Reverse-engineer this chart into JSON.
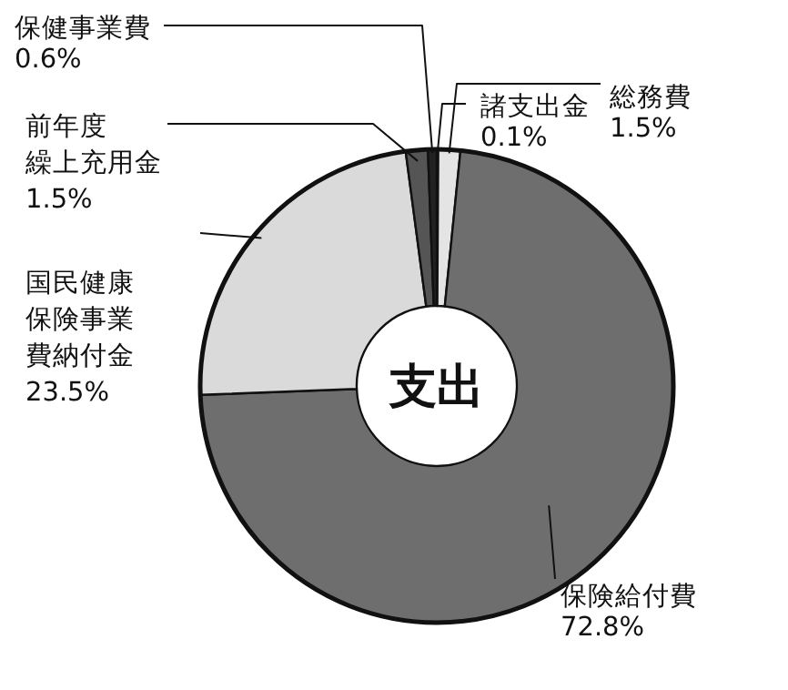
{
  "chart_data": {
    "type": "donut",
    "categories": [
      "諸支出金",
      "総務費",
      "保険給付費",
      "国民健康保険事業費納付金",
      "前年度繰上充用金",
      "保健事業費"
    ],
    "values": [
      0.1,
      1.5,
      72.8,
      23.5,
      1.5,
      0.6
    ],
    "value_labels": [
      "0.1%",
      "1.5%",
      "72.8%",
      "23.5%",
      "1.5%",
      "0.6%"
    ],
    "colors": [
      "#f4f4f4",
      "#e4e4e4",
      "#6e6e6e",
      "#dadada",
      "#555555",
      "#222222"
    ],
    "annotations": [
      "支出"
    ]
  }
}
